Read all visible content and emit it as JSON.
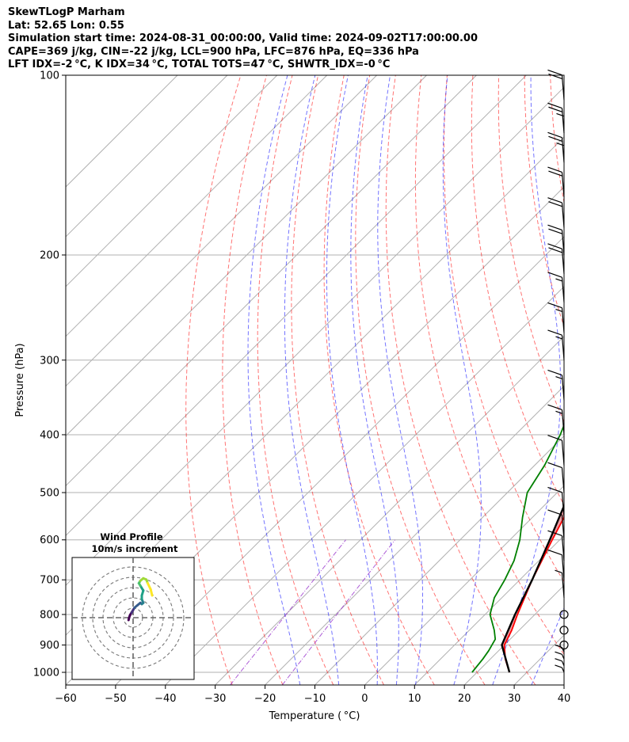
{
  "header": {
    "line1": "SkewTLogP Marham",
    "line2": "Lat: 52.65   Lon: 0.55",
    "line3": "Simulation start time: 2024-08-31_00:00:00, Valid time: 2024-09-02T17:00:00.00",
    "line4": "CAPE=369 j/kg, CIN=-22 j/kg, LCL=900 hPa, LFC=876 hPa, EQ=336 hPa",
    "line5": "LFT IDX=-2 °C, K IDX=34 °C, TOTAL TOTS=47 °C, SHWTR_IDX=-0 °C"
  },
  "chart_data": {
    "type": "line",
    "chart_kind": "skew-T log-P",
    "xlabel": "Temperature ( °C)",
    "ylabel": "Pressure (hPa)",
    "xlim": [
      -60,
      40
    ],
    "ylim": [
      1050,
      100
    ],
    "y_scale": "log",
    "x_ticks": [
      -60,
      -50,
      -40,
      -30,
      -20,
      -10,
      0,
      10,
      20,
      30,
      40
    ],
    "x_tick_labels": [
      "−60",
      "−50",
      "−40",
      "−30",
      "−20",
      "−10",
      "0",
      "10",
      "20",
      "30",
      "40"
    ],
    "y_ticks": [
      100,
      200,
      300,
      400,
      500,
      600,
      700,
      800,
      900,
      1000
    ],
    "y_tick_labels": [
      "100",
      "200",
      "300",
      "400",
      "500",
      "600",
      "700",
      "800",
      "900",
      "1000"
    ],
    "grid": true,
    "series": [
      {
        "color": "#ff0000",
        "pressure": [
          1000,
          950,
          900,
          850,
          800,
          700,
          600,
          500,
          400,
          336,
          300,
          250,
          215,
          200,
          180,
          160,
          140,
          120,
          110,
          100
        ],
        "values": [
          26.5,
          23.0,
          20.0,
          18.5,
          16.5,
          12.5,
          8.5,
          4.0,
          -1.0,
          -5.0,
          -9.0,
          -16.0,
          -22.0,
          -24.0,
          -23.0,
          -21.5,
          -18.5,
          -16.5,
          -16.0,
          -15.0
        ]
      },
      {
        "color": "#008000",
        "pressure": [
          1000,
          950,
          920,
          880,
          850,
          800,
          750,
          700,
          650,
          600,
          550,
          500,
          450,
          400,
          300,
          250,
          200,
          180,
          170,
          150,
          145,
          130,
          120,
          110,
          100
        ],
        "values": [
          19.0,
          18.5,
          18.0,
          17.0,
          15.0,
          11.0,
          8.5,
          7.0,
          5.0,
          2.0,
          -2.0,
          -6.0,
          -8.0,
          -11.0,
          -20.0,
          -25.0,
          -31.0,
          -33.0,
          -32.0,
          -40.0,
          -42.0,
          -44.0,
          -45.0,
          -46.5,
          -47.5
        ]
      },
      {
        "color": "#000000",
        "pressure": [
          1000,
          900,
          800,
          700,
          600,
          500,
          400,
          336,
          300,
          250,
          200,
          150,
          120,
          100
        ],
        "values": [
          26.5,
          19.5,
          16.0,
          12.5,
          8.0,
          2.5,
          -4.0,
          -9.0,
          -13.0,
          -20.0,
          -30.0,
          -45.0,
          -56.0,
          -65.0
        ]
      }
    ],
    "wind_barbs": {
      "pressure": [
        1000,
        975,
        950,
        925,
        900,
        850,
        800,
        750,
        700,
        650,
        600,
        550,
        500,
        450,
        400,
        350,
        300,
        270,
        240,
        215,
        200,
        180,
        160,
        140,
        125,
        110
      ],
      "speed_kt": [
        5,
        5,
        5,
        5,
        0,
        0,
        0,
        5,
        10,
        10,
        10,
        10,
        10,
        10,
        15,
        15,
        15,
        15,
        15,
        20,
        20,
        20,
        20,
        25,
        25,
        20
      ]
    },
    "wind_profile_inset": {
      "title": "Wind Profile",
      "subtitle": "10m/s increment",
      "hodograph_u": [
        -1.0,
        -0.8,
        -0.5,
        0.0,
        0.5,
        1.0,
        2.0,
        3.0,
        3.5,
        4.0,
        3.5,
        3.5,
        4.0,
        3.0,
        2.5,
        3.0,
        4.0,
        5.0,
        5.5,
        6.5,
        7.0
      ],
      "hodograph_v": [
        0.0,
        1.0,
        2.0,
        3.0,
        4.0,
        5.0,
        6.0,
        7.0,
        6.5,
        7.0,
        8.5,
        10.0,
        12.0,
        14.0,
        15.0,
        16.0,
        17.0,
        16.5,
        15.0,
        12.5,
        10.0
      ]
    }
  }
}
